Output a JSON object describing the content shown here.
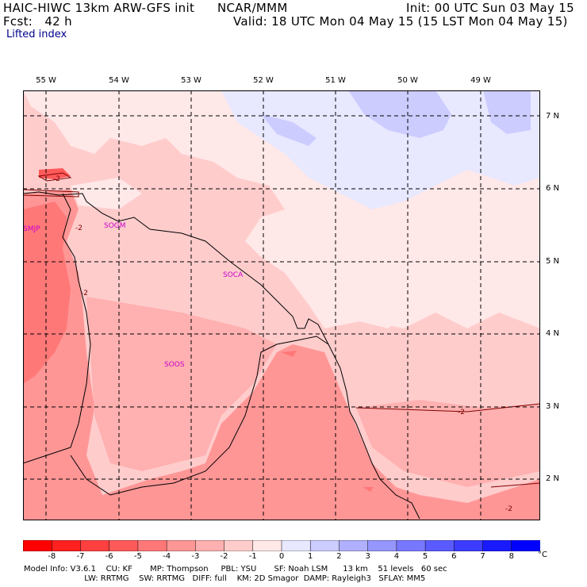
{
  "header": {
    "model": "HAIC-HIWC 13km ARW-GFS init",
    "center": "NCAR/MMM",
    "init": "Init: 00 UTC Sun 03 May 15",
    "fcst": "Fcst:   42 h",
    "valid": "Valid: 18 UTC Mon 04 May 15 (15 LST Mon 04 May 15)",
    "field": "Lifted index"
  },
  "lon_labels": [
    "55 W",
    "54 W",
    "53 W",
    "52 W",
    "51 W",
    "50 W",
    "49 W"
  ],
  "lat_labels": [
    "7 N",
    "6 N",
    "5 N",
    "4 N",
    "3 N",
    "2 N"
  ],
  "stations": [
    "SMJP",
    "SOGM",
    "SOCA",
    "SOOS"
  ],
  "contour_labels": [
    "-2",
    "-2",
    "-2",
    "-2",
    "-2"
  ],
  "colorbar": {
    "ticks": [
      "-8",
      "-7",
      "-6",
      "-5",
      "-4",
      "-3",
      "-2",
      "-1",
      "0",
      "1",
      "2",
      "3",
      "4",
      "5",
      "6",
      "7",
      "8"
    ],
    "unit": "°C",
    "colors": [
      "#ff0000",
      "#ff2020",
      "#ff4040",
      "#ff5a5a",
      "#ff7878",
      "#ff9696",
      "#ffb0b0",
      "#ffcccc",
      "#ffe8e8",
      "#e8e8ff",
      "#ccccff",
      "#b0b0ff",
      "#9696ff",
      "#7878ff",
      "#5a5aff",
      "#3c3cff",
      "#1a1aff",
      "#0000ff"
    ]
  },
  "footer": {
    "line1": "Model Info: V3.6.1    CU: KF       MP: Thompson     PBL: YSU       SF: Noah LSM      13 km    51 levels   60 sec",
    "line2": "                        LW: RRTMG    SW: RRTMG   DIFF: full    KM: 2D Smagor  DAMP: Rayleigh3   SFLAY: MM5"
  }
}
